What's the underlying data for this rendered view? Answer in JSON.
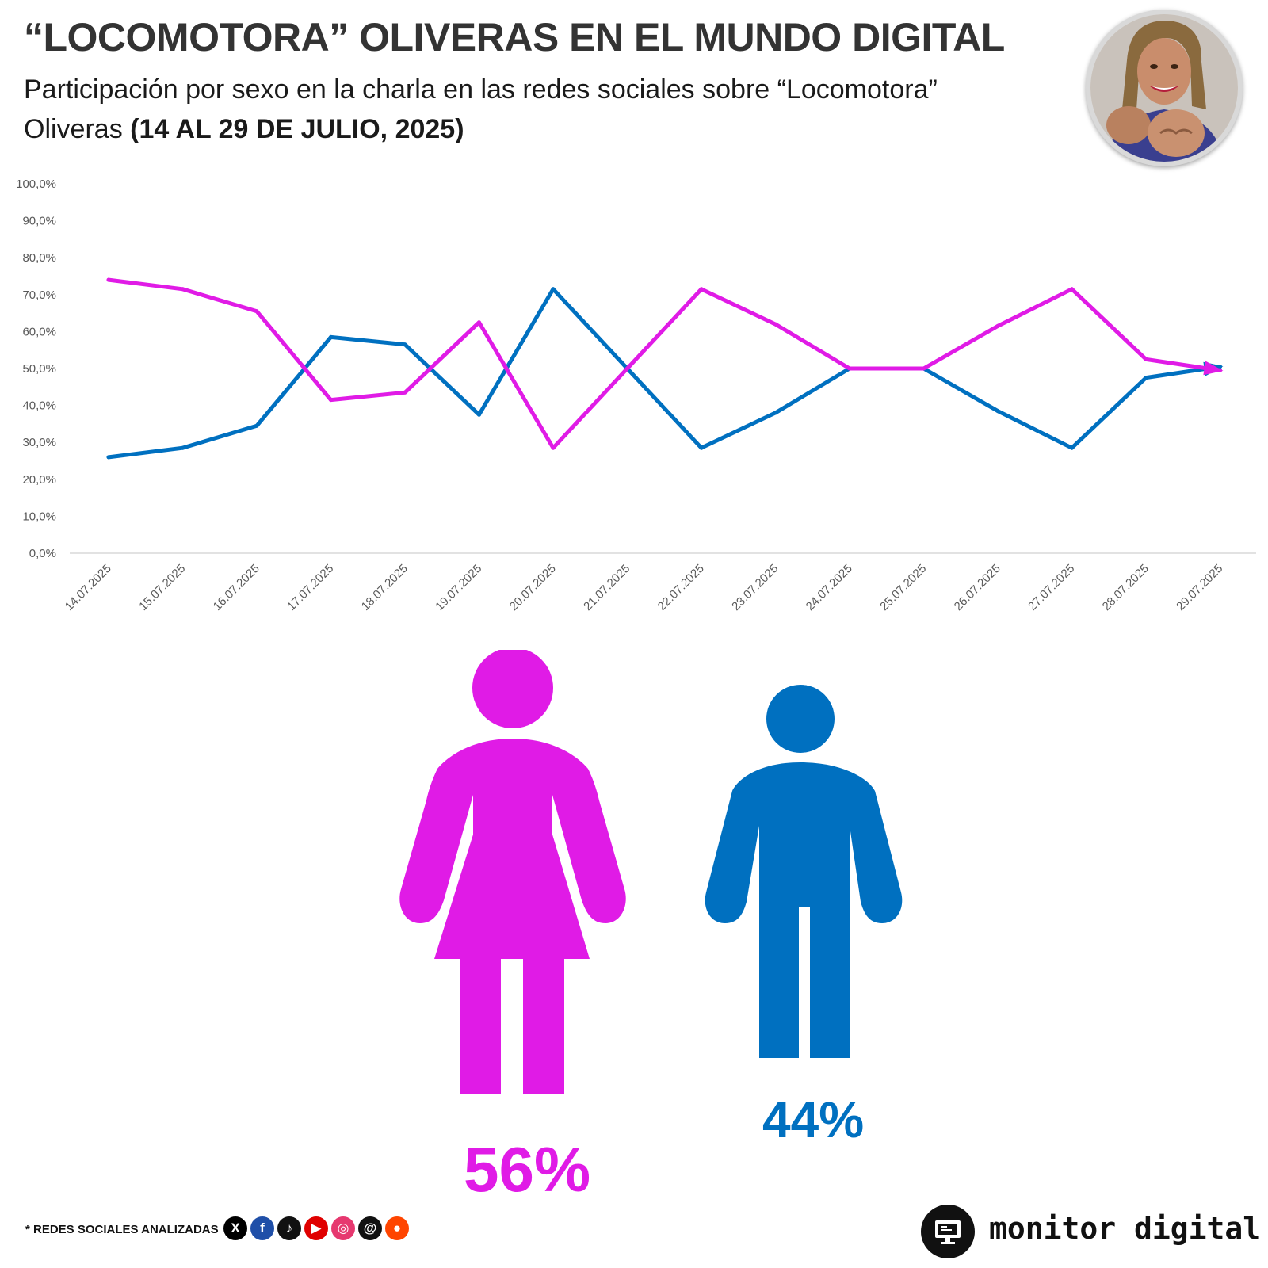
{
  "header": {
    "title": "“LOCOMOTORA” OLIVERAS EN EL MUNDO DIGITAL",
    "subtitle_regular": "Participación por sexo en la charla en las redes sociales sobre “Locomotora” Oliveras ",
    "subtitle_bold": "(14 AL 29 DE JULIO, 2025)"
  },
  "chart_data": {
    "type": "line",
    "title": "Participación por sexo en la charla en las redes sociales",
    "xlabel": "",
    "ylabel": "",
    "ylim": [
      0,
      100
    ],
    "y_ticks": [
      "0,0%",
      "10,0%",
      "20,0%",
      "30,0%",
      "40,0%",
      "50,0%",
      "60,0%",
      "70,0%",
      "80,0%",
      "90,0%",
      "100,0%"
    ],
    "grid": false,
    "categories": [
      "14.07.2025",
      "15.07.2025",
      "16.07.2025",
      "17.07.2025",
      "18.07.2025",
      "19.07.2025",
      "20.07.2025",
      "21.07.2025",
      "22.07.2025",
      "23.07.2025",
      "24.07.2025",
      "25.07.2025",
      "26.07.2025",
      "27.07.2025",
      "28.07.2025",
      "29.07.2025"
    ],
    "series": [
      {
        "name": "Mujeres",
        "color": "#e01be6",
        "values": [
          74,
          71.5,
          65.5,
          41.5,
          43.5,
          62.5,
          28.5,
          50,
          71.5,
          62,
          50,
          50,
          61.5,
          71.5,
          52.5,
          49.5
        ]
      },
      {
        "name": "Hombres",
        "color": "#0070c0",
        "values": [
          26,
          28.5,
          34.5,
          58.5,
          56.5,
          37.5,
          71.5,
          50,
          28.5,
          38,
          50,
          50,
          38.5,
          28.5,
          47.5,
          50.5
        ]
      }
    ]
  },
  "summary": {
    "female_pct": "56%",
    "male_pct": "44%",
    "female_color": "#e01be6",
    "male_color": "#0070c0"
  },
  "footer": {
    "networks_label": "* REDES SOCIALES ANALIZADAS",
    "networks": [
      {
        "name": "x-icon",
        "glyph": "X",
        "color": "#000000"
      },
      {
        "name": "facebook-icon",
        "glyph": "f",
        "color": "#1f4fa8"
      },
      {
        "name": "tiktok-icon",
        "glyph": "♪",
        "color": "#111111"
      },
      {
        "name": "youtube-icon",
        "glyph": "▶",
        "color": "#e00000"
      },
      {
        "name": "instagram-icon",
        "glyph": "◎",
        "color": "#e6386f"
      },
      {
        "name": "threads-icon",
        "glyph": "@",
        "color": "#111111"
      },
      {
        "name": "reddit-icon",
        "glyph": "●",
        "color": "#ff4500"
      }
    ],
    "brand": "monitor digital"
  }
}
